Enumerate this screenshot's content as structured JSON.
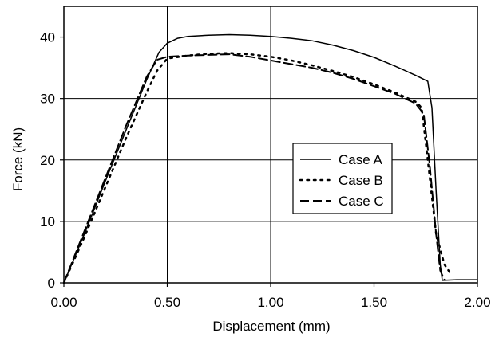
{
  "chart_data": {
    "type": "line",
    "title": "",
    "xlabel": "Displacement (mm)",
    "ylabel": "Force (kN)",
    "xlim": [
      0,
      2
    ],
    "ylim": [
      0,
      45
    ],
    "x_ticks": [
      "0.00",
      "0.50",
      "1.00",
      "1.50",
      "2.00"
    ],
    "x_tick_values": [
      0,
      0.5,
      1.0,
      1.5,
      2.0
    ],
    "y_ticks": [
      "0",
      "10",
      "20",
      "30",
      "40"
    ],
    "y_tick_values": [
      0,
      10,
      20,
      30,
      40
    ],
    "grid": true,
    "legend_position": "center-right",
    "series": [
      {
        "name": "Case A",
        "style": "solid",
        "color": "#000000",
        "points": [
          [
            0,
            0
          ],
          [
            0.1,
            8
          ],
          [
            0.2,
            16.5
          ],
          [
            0.3,
            24.8
          ],
          [
            0.4,
            33
          ],
          [
            0.46,
            37.5
          ],
          [
            0.5,
            39
          ],
          [
            0.55,
            39.8
          ],
          [
            0.6,
            40.1
          ],
          [
            0.7,
            40.3
          ],
          [
            0.8,
            40.4
          ],
          [
            0.9,
            40.3
          ],
          [
            1.0,
            40.1
          ],
          [
            1.1,
            39.8
          ],
          [
            1.2,
            39.4
          ],
          [
            1.3,
            38.7
          ],
          [
            1.4,
            37.8
          ],
          [
            1.5,
            36.7
          ],
          [
            1.6,
            35.3
          ],
          [
            1.7,
            33.8
          ],
          [
            1.76,
            32.8
          ],
          [
            1.78,
            28.5
          ],
          [
            1.8,
            15
          ],
          [
            1.82,
            3
          ],
          [
            1.83,
            0.4
          ],
          [
            1.9,
            0.5
          ],
          [
            2.0,
            0.5
          ]
        ]
      },
      {
        "name": "Case B",
        "style": "dotted",
        "color": "#000000",
        "points": [
          [
            0,
            0
          ],
          [
            0.1,
            7.5
          ],
          [
            0.2,
            15.5
          ],
          [
            0.3,
            23.5
          ],
          [
            0.4,
            31
          ],
          [
            0.45,
            34.5
          ],
          [
            0.5,
            36.5
          ],
          [
            0.6,
            37
          ],
          [
            0.7,
            37.3
          ],
          [
            0.8,
            37.4
          ],
          [
            0.9,
            37.2
          ],
          [
            1.0,
            36.8
          ],
          [
            1.1,
            36.2
          ],
          [
            1.2,
            35.4
          ],
          [
            1.3,
            34.5
          ],
          [
            1.4,
            33.5
          ],
          [
            1.5,
            32.3
          ],
          [
            1.6,
            31
          ],
          [
            1.7,
            29.5
          ],
          [
            1.73,
            28.5
          ],
          [
            1.76,
            20
          ],
          [
            1.8,
            8
          ],
          [
            1.84,
            3
          ],
          [
            1.87,
            1.5
          ]
        ]
      },
      {
        "name": "Case C",
        "style": "dashed",
        "color": "#000000",
        "points": [
          [
            0,
            0
          ],
          [
            0.1,
            8.5
          ],
          [
            0.2,
            17
          ],
          [
            0.3,
            25.5
          ],
          [
            0.4,
            33.5
          ],
          [
            0.45,
            36.3
          ],
          [
            0.5,
            36.8
          ],
          [
            0.6,
            37
          ],
          [
            0.7,
            37.1
          ],
          [
            0.8,
            37.2
          ],
          [
            0.9,
            36.8
          ],
          [
            1.0,
            36.2
          ],
          [
            1.1,
            35.6
          ],
          [
            1.2,
            35.0
          ],
          [
            1.3,
            34.2
          ],
          [
            1.4,
            33.2
          ],
          [
            1.5,
            32
          ],
          [
            1.6,
            30.8
          ],
          [
            1.7,
            29.2
          ],
          [
            1.74,
            27.5
          ],
          [
            1.77,
            19
          ],
          [
            1.8,
            8
          ],
          [
            1.82,
            2
          ],
          [
            1.84,
            0.5
          ]
        ]
      }
    ]
  }
}
